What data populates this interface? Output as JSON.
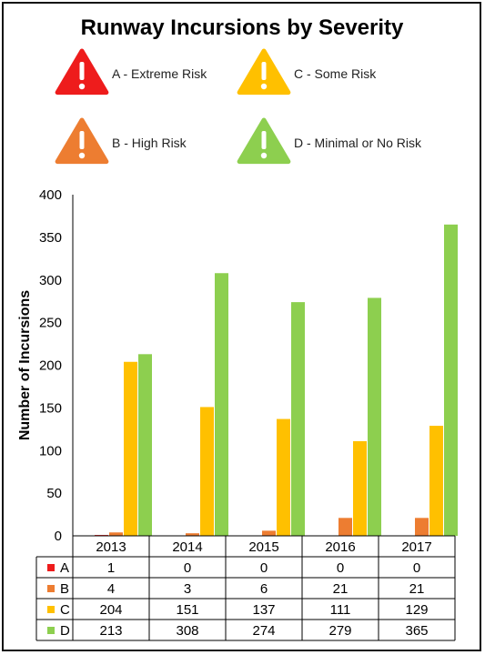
{
  "colors": {
    "A": "#ee1c1c",
    "B": "#ed7d31",
    "C": "#ffc000",
    "D": "#8dcf4f"
  },
  "legend": [
    {
      "key": "A",
      "label": "A - Extreme Risk",
      "icon": "warning-triangle-icon"
    },
    {
      "key": "C",
      "label": "C - Some Risk",
      "icon": "warning-triangle-icon"
    },
    {
      "key": "B",
      "label": "B - High Risk",
      "icon": "warning-triangle-icon"
    },
    {
      "key": "D",
      "label": "D - Minimal or No Risk",
      "icon": "warning-triangle-icon"
    }
  ],
  "chart_data": {
    "type": "bar",
    "title": "Runway Incursions by Severity",
    "xlabel": "",
    "ylabel": "Number of Incursions",
    "ylim": [
      0,
      400
    ],
    "yticks": [
      0,
      50,
      100,
      150,
      200,
      250,
      300,
      350,
      400
    ],
    "categories": [
      "2013",
      "2014",
      "2015",
      "2016",
      "2017"
    ],
    "series": [
      {
        "name": "A",
        "values": [
          1,
          0,
          0,
          0,
          0
        ]
      },
      {
        "name": "B",
        "values": [
          4,
          3,
          6,
          21,
          21
        ]
      },
      {
        "name": "C",
        "values": [
          204,
          151,
          137,
          111,
          129
        ]
      },
      {
        "name": "D",
        "values": [
          213,
          308,
          274,
          279,
          365
        ]
      }
    ],
    "grid": false,
    "legend_position": "top",
    "data_table": true
  }
}
